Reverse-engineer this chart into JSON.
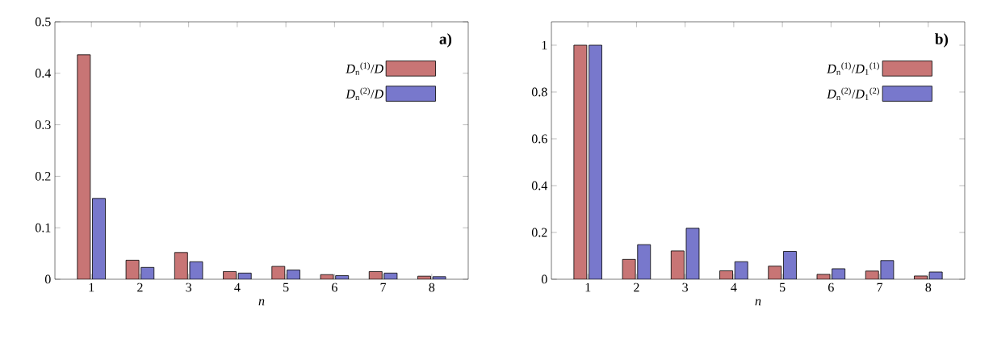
{
  "chart_data": [
    {
      "type": "bar",
      "title": "a)",
      "xlabel": "n",
      "categories": [
        "1",
        "2",
        "3",
        "4",
        "5",
        "6",
        "7",
        "8"
      ],
      "series": [
        {
          "name": "*D*$_{n}$$^{(1)}$/*D*",
          "color": "#c87575",
          "values": [
            0.436,
            0.037,
            0.052,
            0.015,
            0.025,
            0.009,
            0.015,
            0.006
          ]
        },
        {
          "name": "*D*$_{n}$$^{(2)}$/*D*",
          "color": "#7878cc",
          "values": [
            0.157,
            0.023,
            0.034,
            0.012,
            0.018,
            0.007,
            0.012,
            0.005
          ]
        }
      ],
      "ylim": [
        0,
        0.5
      ],
      "yticks": [
        0,
        0.1,
        0.2,
        0.3,
        0.4,
        0.5
      ],
      "legend": "top right"
    },
    {
      "type": "bar",
      "title": "b)",
      "xlabel": "n",
      "categories": [
        "1",
        "2",
        "3",
        "4",
        "5",
        "6",
        "7",
        "8"
      ],
      "series": [
        {
          "name": "*D*$_{n}$$^{(1)}$/*D*$_{1}$$^{(1)}$",
          "color": "#c87575",
          "values": [
            1.0,
            0.085,
            0.121,
            0.036,
            0.056,
            0.021,
            0.035,
            0.014
          ]
        },
        {
          "name": "*D*$_{n}$$^{(2)}$/*D*$_{1}$$^{(2)}$",
          "color": "#7878cc",
          "values": [
            1.0,
            0.148,
            0.218,
            0.075,
            0.119,
            0.045,
            0.08,
            0.031
          ]
        }
      ],
      "ylim": [
        0,
        1.1
      ],
      "yticks": [
        0,
        0.2,
        0.4,
        0.6,
        0.8,
        1
      ],
      "legend": "top right"
    }
  ]
}
